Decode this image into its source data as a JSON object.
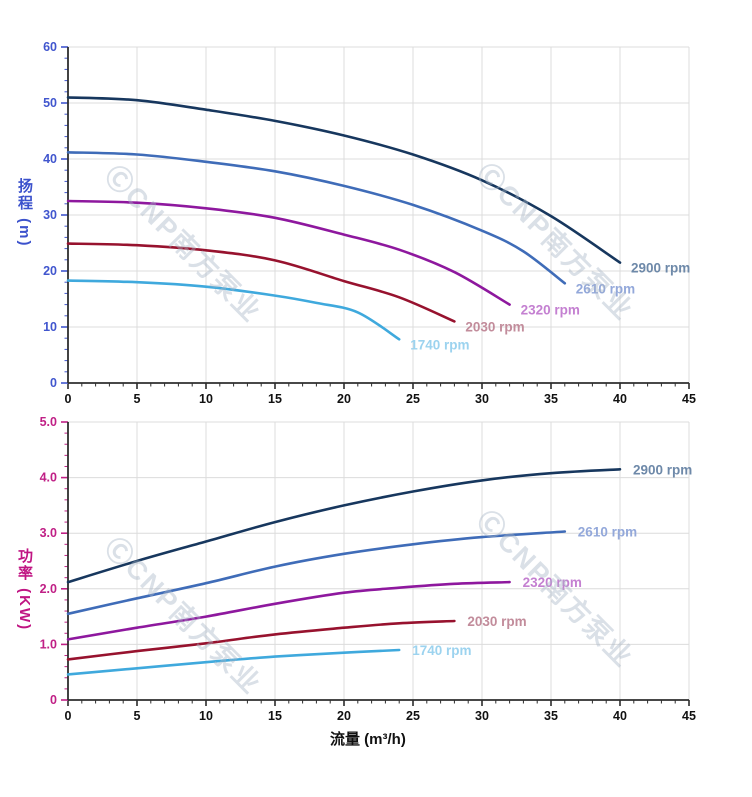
{
  "page": {
    "background": "#ffffff"
  },
  "watermark": {
    "text": "ⒸCNP南方泵业",
    "color": "rgba(168,180,198,0.42)"
  },
  "axes": {
    "x": {
      "label": "流量 (m³/h)",
      "min": 0,
      "max": 45,
      "tick_values": [
        0,
        5,
        10,
        15,
        20,
        25,
        30,
        35,
        40,
        45
      ],
      "tick_labels": [
        "0",
        "5",
        "10",
        "15",
        "20",
        "25",
        "30",
        "35",
        "40",
        "45"
      ],
      "minor_step": 1,
      "tick_color": "#2b2b2b",
      "label_color": "#111111"
    },
    "head_y": {
      "label": "扬程 (m)",
      "min": 0,
      "max": 60,
      "tick_values": [
        0,
        10,
        20,
        30,
        40,
        50,
        60
      ],
      "tick_labels": [
        "0",
        "10",
        "20",
        "30",
        "40",
        "50",
        "60"
      ],
      "minor_step": 2,
      "color": "#4156ce"
    },
    "power_y": {
      "label": "功率 (KW)",
      "min": 0,
      "max": 5,
      "tick_values": [
        0,
        1,
        2,
        3,
        4,
        5
      ],
      "tick_labels": [
        "0",
        "1.0",
        "2.0",
        "3.0",
        "4.0",
        "5.0"
      ],
      "minor_step": 0.2,
      "color": "#c02086"
    }
  },
  "chart_data": [
    {
      "type": "line",
      "panel": "head",
      "title": "",
      "xlabel": "流量 (m³/h)",
      "ylabel": "扬程 (m)",
      "xlim": [
        0,
        45
      ],
      "ylim": [
        0,
        60
      ],
      "grid": true,
      "legend_position": "curve-end-labels",
      "series": [
        {
          "name": "2900 rpm",
          "color": "#17375e",
          "label_color": "#6e89a9",
          "points": [
            [
              0,
              51
            ],
            [
              5,
              50.5
            ],
            [
              10,
              48.8
            ],
            [
              15,
              46.8
            ],
            [
              20,
              44.2
            ],
            [
              25,
              40.8
            ],
            [
              30,
              36.2
            ],
            [
              35,
              29.8
            ],
            [
              40,
              21.5
            ]
          ]
        },
        {
          "name": "2610 rpm",
          "color": "#3f6cb8",
          "label_color": "#93a8da",
          "points": [
            [
              0,
              41.2
            ],
            [
              5,
              40.8
            ],
            [
              10,
              39.5
            ],
            [
              15,
              37.8
            ],
            [
              20,
              35.2
            ],
            [
              25,
              31.8
            ],
            [
              30,
              27.2
            ],
            [
              33,
              23.5
            ],
            [
              36,
              17.8
            ]
          ]
        },
        {
          "name": "2320 rpm",
          "color": "#8e189e",
          "label_color": "#c480d1",
          "points": [
            [
              0,
              32.5
            ],
            [
              5,
              32.2
            ],
            [
              10,
              31.2
            ],
            [
              15,
              29.5
            ],
            [
              20,
              26.5
            ],
            [
              24,
              23.8
            ],
            [
              28,
              19.8
            ],
            [
              32,
              14
            ]
          ]
        },
        {
          "name": "2030 rpm",
          "color": "#97122e",
          "label_color": "#c28c9b",
          "points": [
            [
              0,
              24.9
            ],
            [
              5,
              24.6
            ],
            [
              10,
              23.7
            ],
            [
              15,
              21.9
            ],
            [
              20,
              18.2
            ],
            [
              24,
              15.3
            ],
            [
              28,
              11
            ]
          ]
        },
        {
          "name": "1740 rpm",
          "color": "#3fa9dd",
          "label_color": "#9cd3ef",
          "points": [
            [
              0,
              18.3
            ],
            [
              5,
              18
            ],
            [
              10,
              17.2
            ],
            [
              15,
              15.6
            ],
            [
              18,
              14.3
            ],
            [
              21,
              12.6
            ],
            [
              24,
              7.8
            ]
          ]
        }
      ]
    },
    {
      "type": "line",
      "panel": "power",
      "title": "",
      "xlabel": "流量 (m³/h)",
      "ylabel": "功率 (KW)",
      "xlim": [
        0,
        45
      ],
      "ylim": [
        0,
        5
      ],
      "grid": true,
      "legend_position": "curve-end-labels",
      "series": [
        {
          "name": "2900 rpm",
          "color": "#17375e",
          "label_color": "#6e89a9",
          "points": [
            [
              0,
              2.12
            ],
            [
              5,
              2.5
            ],
            [
              10,
              2.85
            ],
            [
              15,
              3.2
            ],
            [
              20,
              3.5
            ],
            [
              25,
              3.75
            ],
            [
              30,
              3.95
            ],
            [
              35,
              4.08
            ],
            [
              40,
              4.15
            ]
          ]
        },
        {
          "name": "2610 rpm",
          "color": "#3f6cb8",
          "label_color": "#93a8da",
          "points": [
            [
              0,
              1.55
            ],
            [
              5,
              1.83
            ],
            [
              10,
              2.1
            ],
            [
              15,
              2.4
            ],
            [
              20,
              2.63
            ],
            [
              25,
              2.8
            ],
            [
              30,
              2.93
            ],
            [
              36,
              3.03
            ]
          ]
        },
        {
          "name": "2320 rpm",
          "color": "#8e189e",
          "label_color": "#c480d1",
          "points": [
            [
              0,
              1.09
            ],
            [
              5,
              1.3
            ],
            [
              10,
              1.5
            ],
            [
              15,
              1.73
            ],
            [
              20,
              1.93
            ],
            [
              24,
              2.02
            ],
            [
              28,
              2.09
            ],
            [
              32,
              2.12
            ]
          ]
        },
        {
          "name": "2030 rpm",
          "color": "#97122e",
          "label_color": "#c28c9b",
          "points": [
            [
              0,
              0.73
            ],
            [
              5,
              0.88
            ],
            [
              10,
              1.02
            ],
            [
              15,
              1.18
            ],
            [
              20,
              1.3
            ],
            [
              24,
              1.38
            ],
            [
              28,
              1.42
            ]
          ]
        },
        {
          "name": "1740 rpm",
          "color": "#3fa9dd",
          "label_color": "#9cd3ef",
          "points": [
            [
              0,
              0.46
            ],
            [
              5,
              0.57
            ],
            [
              10,
              0.68
            ],
            [
              15,
              0.78
            ],
            [
              20,
              0.85
            ],
            [
              24,
              0.9
            ]
          ]
        }
      ]
    }
  ]
}
